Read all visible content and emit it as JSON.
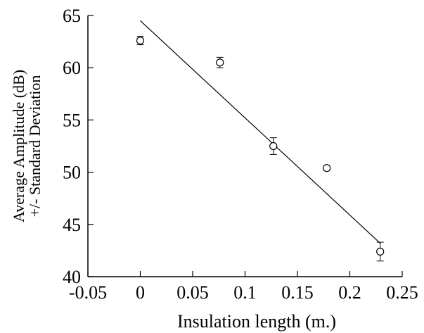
{
  "chart_data": {
    "type": "scatter",
    "title": "",
    "xlabel": "Insulation length (m.)",
    "ylabel_lines": [
      "Average Amplitude (dB)",
      "+/- Standard Deviation"
    ],
    "xlim": [
      -0.05,
      0.25
    ],
    "ylim": [
      40,
      65
    ],
    "xticks": [
      -0.05,
      0,
      0.05,
      0.1,
      0.15,
      0.2,
      0.25
    ],
    "xtick_labels": [
      "-0.05",
      "0",
      "0.05",
      "0.1",
      "0.15",
      "0.2",
      "0.25"
    ],
    "yticks": [
      40,
      45,
      50,
      55,
      60,
      65
    ],
    "ytick_labels": [
      "40",
      "45",
      "50",
      "55",
      "60",
      "65"
    ],
    "grid": false,
    "series": [
      {
        "marker": "open-circle",
        "points": [
          {
            "x": 0.0,
            "y": 62.6,
            "err": 0.4
          },
          {
            "x": 0.076,
            "y": 60.5,
            "err": 0.5
          },
          {
            "x": 0.127,
            "y": 52.5,
            "err": 0.8
          },
          {
            "x": 0.178,
            "y": 50.4,
            "err": 0.2
          },
          {
            "x": 0.229,
            "y": 42.4,
            "err": 0.9
          }
        ]
      }
    ],
    "fit_line": {
      "x": [
        0.0,
        0.229
      ],
      "y": [
        64.5,
        43.2
      ]
    }
  }
}
